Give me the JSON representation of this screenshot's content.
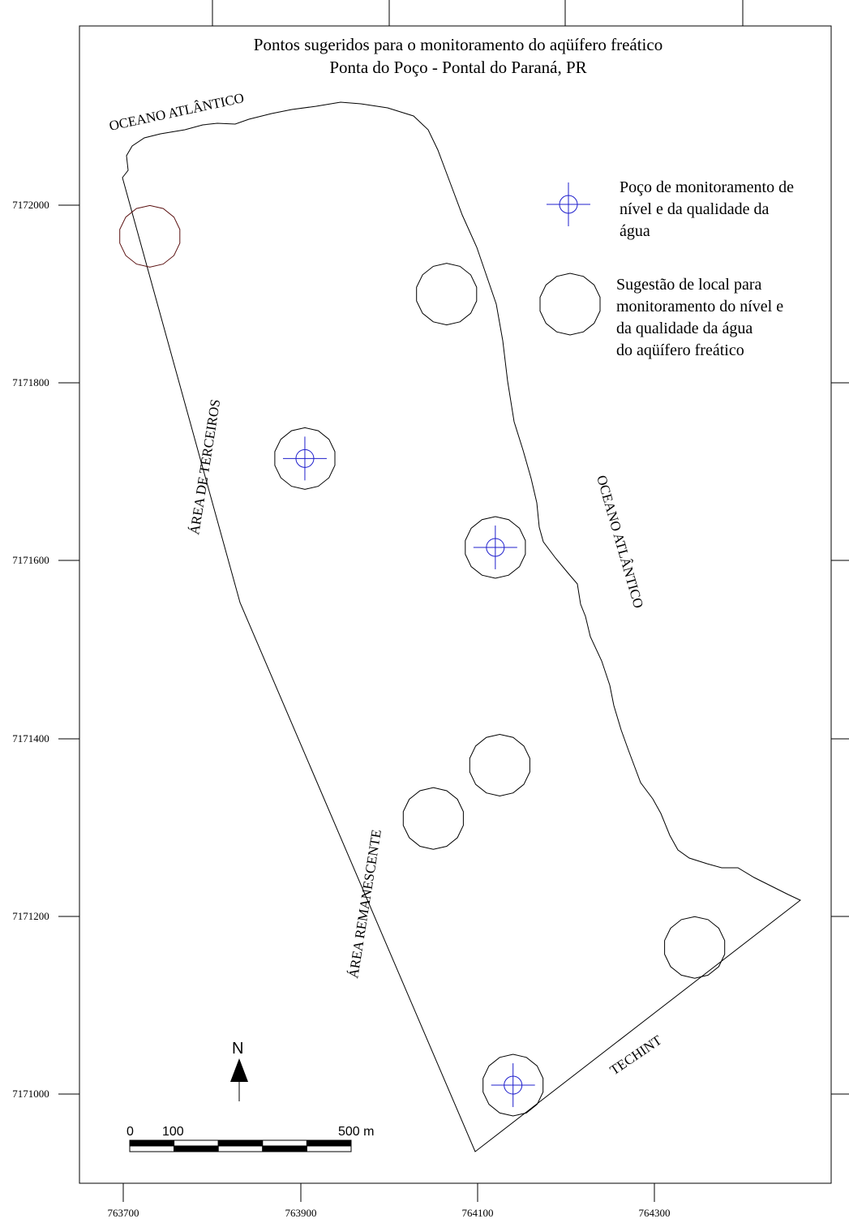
{
  "map": {
    "title_line1": "Pontos sugeridos para o monitoramento do aqüífero freático",
    "title_line2": "Ponta do Poço - Pontal do Paraná, PR"
  },
  "labels": {
    "ocean_north": "OCEANO ATLÂNTICO",
    "ocean_east": "OCEANO ATLÂNTICO",
    "terceiros": "ÁREA DE TERCEIROS",
    "remanescente": "ÁREA REMANESCENTE",
    "techint": "TECHINT"
  },
  "legend": {
    "well": {
      "line1": "Poço de monitoramento de",
      "line2": "nível e da qualidade da",
      "line3": "água"
    },
    "suggestion": {
      "line1": "Sugestão de local para",
      "line2": "monitoramento do nível e",
      "line3": "da qualidade da água",
      "line4": "do aqüífero freático"
    }
  },
  "axes": {
    "y_ticks": [
      "7172000",
      "7171800",
      "7171600",
      "7171400",
      "7171200",
      "7171000"
    ],
    "x_ticks": [
      "763700",
      "763900",
      "764100",
      "764300"
    ]
  },
  "north_arrow": {
    "label": "N"
  },
  "scale_bar": {
    "label_0": "0",
    "label_100": "100",
    "label_500": "500 m"
  },
  "colors": {
    "outline": "#000000",
    "well_symbol": "#1f1fcc",
    "first_circle": "#5a1010"
  },
  "features": {
    "wells": [
      {
        "easting": 763905,
        "northing": 7171715
      },
      {
        "easting": 764120,
        "northing": 7171615
      },
      {
        "easting": 764140,
        "northing": 7171010
      }
    ],
    "suggested_sites": [
      {
        "easting": 763730,
        "northing": 7171965
      },
      {
        "easting": 764065,
        "northing": 7171900
      },
      {
        "easting": 763905,
        "northing": 7171715
      },
      {
        "easting": 764120,
        "northing": 7171615
      },
      {
        "easting": 764125,
        "northing": 7171370
      },
      {
        "easting": 764050,
        "northing": 7171310
      },
      {
        "easting": 764345,
        "northing": 7171165
      },
      {
        "easting": 764140,
        "northing": 7171010
      }
    ]
  }
}
